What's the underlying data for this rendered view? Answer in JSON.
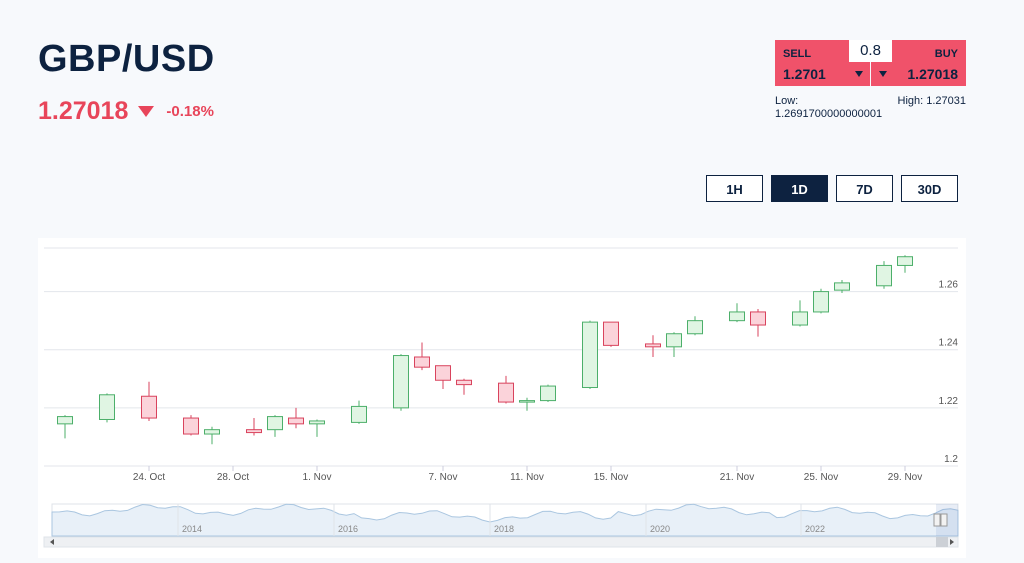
{
  "header": {
    "pair": "GBP/USD",
    "price": "1.27018",
    "change": "-0.18%"
  },
  "trade": {
    "sell_label": "SELL",
    "sell_value": "1.2701",
    "buy_label": "BUY",
    "buy_value": "1.27018",
    "spread": "0.8",
    "low_label": "Low:",
    "low_value": "1.2691700000000001",
    "high_text": "High: 1.27031"
  },
  "ranges": [
    {
      "label": "1H",
      "active": false
    },
    {
      "label": "1D",
      "active": true
    },
    {
      "label": "7D",
      "active": false
    },
    {
      "label": "30D",
      "active": false
    }
  ],
  "colors": {
    "up_fill": "#e0f5e3",
    "up_stroke": "#4caf6a",
    "down_fill": "#fbd3da",
    "down_stroke": "#d9435d",
    "navigator": "#aac6e0"
  },
  "chart_data": {
    "type": "candlestick",
    "ylim": [
      1.2,
      1.275
    ],
    "yticks": [
      1.2,
      1.22,
      1.24,
      1.26
    ],
    "ytick_labels": [
      "1.2",
      "1.22",
      "1.24",
      "1.26"
    ],
    "xticks": [
      {
        "label": "24. Oct",
        "date": "2023-10-24"
      },
      {
        "label": "28. Oct",
        "date": "2023-10-28"
      },
      {
        "label": "1. Nov",
        "date": "2023-11-01"
      },
      {
        "label": "7. Nov",
        "date": "2023-11-07"
      },
      {
        "label": "11. Nov",
        "date": "2023-11-11"
      },
      {
        "label": "15. Nov",
        "date": "2023-11-15"
      },
      {
        "label": "21. Nov",
        "date": "2023-11-21"
      },
      {
        "label": "25. Nov",
        "date": "2023-11-25"
      },
      {
        "label": "29. Nov",
        "date": "2023-11-29"
      }
    ],
    "candles": [
      {
        "date": "2023-10-20",
        "open": 1.2145,
        "high": 1.2175,
        "low": 1.2095,
        "close": 1.217
      },
      {
        "date": "2023-10-22",
        "open": 1.216,
        "high": 1.225,
        "low": 1.215,
        "close": 1.2245
      },
      {
        "date": "2023-10-24",
        "open": 1.224,
        "high": 1.229,
        "low": 1.2155,
        "close": 1.2165
      },
      {
        "date": "2023-10-26",
        "open": 1.2165,
        "high": 1.2175,
        "low": 1.2105,
        "close": 1.211
      },
      {
        "date": "2023-10-27",
        "open": 1.211,
        "high": 1.2135,
        "low": 1.2075,
        "close": 1.2125
      },
      {
        "date": "2023-10-29",
        "open": 1.2125,
        "high": 1.2165,
        "low": 1.2105,
        "close": 1.2115
      },
      {
        "date": "2023-10-30",
        "open": 1.2125,
        "high": 1.2175,
        "low": 1.21,
        "close": 1.217
      },
      {
        "date": "2023-10-31",
        "open": 1.2165,
        "high": 1.22,
        "low": 1.213,
        "close": 1.2145
      },
      {
        "date": "2023-11-01",
        "open": 1.2145,
        "high": 1.216,
        "low": 1.21,
        "close": 1.2155
      },
      {
        "date": "2023-11-03",
        "open": 1.215,
        "high": 1.2225,
        "low": 1.2145,
        "close": 1.2205
      },
      {
        "date": "2023-11-05",
        "open": 1.22,
        "high": 1.2385,
        "low": 1.219,
        "close": 1.238
      },
      {
        "date": "2023-11-06",
        "open": 1.2375,
        "high": 1.2425,
        "low": 1.233,
        "close": 1.234
      },
      {
        "date": "2023-11-07",
        "open": 1.2345,
        "high": 1.2345,
        "low": 1.2265,
        "close": 1.2295
      },
      {
        "date": "2023-11-08",
        "open": 1.2295,
        "high": 1.23,
        "low": 1.2245,
        "close": 1.228
      },
      {
        "date": "2023-11-10",
        "open": 1.2285,
        "high": 1.231,
        "low": 1.2215,
        "close": 1.222
      },
      {
        "date": "2023-11-11",
        "open": 1.222,
        "high": 1.2235,
        "low": 1.219,
        "close": 1.2225
      },
      {
        "date": "2023-11-12",
        "open": 1.2225,
        "high": 1.228,
        "low": 1.222,
        "close": 1.2275
      },
      {
        "date": "2023-11-14",
        "open": 1.227,
        "high": 1.25,
        "low": 1.2265,
        "close": 1.2495
      },
      {
        "date": "2023-11-15",
        "open": 1.2495,
        "high": 1.2495,
        "low": 1.241,
        "close": 1.2415
      },
      {
        "date": "2023-11-17",
        "open": 1.242,
        "high": 1.245,
        "low": 1.2375,
        "close": 1.241
      },
      {
        "date": "2023-11-18",
        "open": 1.241,
        "high": 1.246,
        "low": 1.2375,
        "close": 1.2455
      },
      {
        "date": "2023-11-19",
        "open": 1.2455,
        "high": 1.2515,
        "low": 1.245,
        "close": 1.25
      },
      {
        "date": "2023-11-21",
        "open": 1.25,
        "high": 1.256,
        "low": 1.2495,
        "close": 1.253
      },
      {
        "date": "2023-11-22",
        "open": 1.253,
        "high": 1.254,
        "low": 1.2445,
        "close": 1.2485
      },
      {
        "date": "2023-11-24",
        "open": 1.2485,
        "high": 1.257,
        "low": 1.248,
        "close": 1.253
      },
      {
        "date": "2023-11-25",
        "open": 1.253,
        "high": 1.261,
        "low": 1.2525,
        "close": 1.26
      },
      {
        "date": "2023-11-26",
        "open": 1.2605,
        "high": 1.264,
        "low": 1.2595,
        "close": 1.263
      },
      {
        "date": "2023-11-28",
        "open": 1.262,
        "high": 1.2705,
        "low": 1.261,
        "close": 1.269
      },
      {
        "date": "2023-11-29",
        "open": 1.269,
        "high": 1.2725,
        "low": 1.2665,
        "close": 1.272
      }
    ],
    "navigator": {
      "years": [
        "2014",
        "2016",
        "2018",
        "2020",
        "2022"
      ]
    }
  }
}
